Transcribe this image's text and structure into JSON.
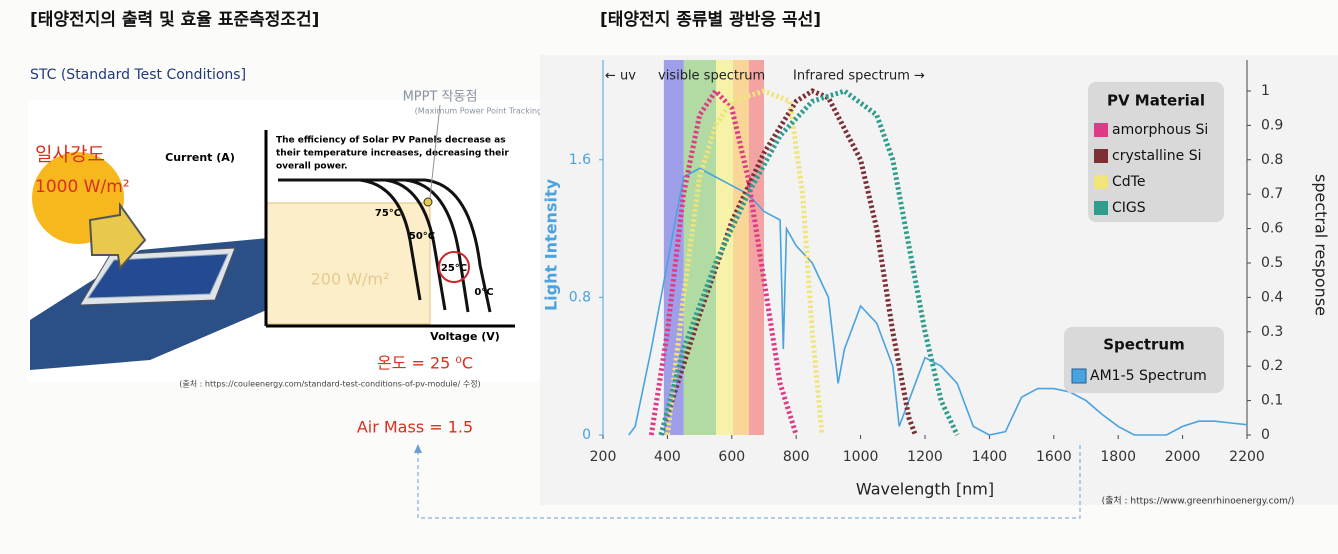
{
  "left": {
    "title": "[태양전지의 출력 및 효율 표준측정조건]",
    "subtitle": "STC (Standard Test Conditions]",
    "irradiance_label": "일사강도",
    "irradiance_value": "1000 W/m²",
    "mppt": "MPPT 작동점",
    "mppt_note": "(Maximum Power Point Tracking)",
    "efficiency_note": [
      "The efficiency of Solar PV Panels decrease as",
      "their temperature increases, decreasing their",
      "overall power."
    ],
    "y_axis": "Current (A)",
    "x_axis": "Voltage (V)",
    "curves": [
      "75°C",
      "50°C",
      "25°C",
      "0°C"
    ],
    "box_label": "200 W/m²",
    "temperature": "온도 = 25 ⁰C",
    "source": "(출처 : https://couleenergy.com/standard-test-conditions-of-pv-module/ 수정)",
    "air_mass": "Air Mass = 1.5"
  },
  "right": {
    "title": "[태양전지 종류별 광반응 곡선]",
    "source": "(출처 : https://www.greenrhinoenergy.com/)"
  },
  "chart_data": {
    "type": "line",
    "xlabel": "Wavelength [nm]",
    "ylabel": "Light Intensity",
    "y2label": "spectral response",
    "xlim": [
      200,
      2200
    ],
    "xticks": [
      200,
      400,
      600,
      800,
      1000,
      1200,
      1400,
      1600,
      1800,
      2000,
      2200
    ],
    "ylim": [
      0,
      2.18
    ],
    "yticks": [
      0,
      0.8,
      1.6
    ],
    "y2lim": [
      0,
      1.09
    ],
    "y2ticks": [
      0,
      0.1,
      0.2,
      0.3,
      0.4,
      0.5,
      0.6,
      0.7,
      0.8,
      0.9,
      1
    ],
    "annotations": [
      "← uv",
      "visible spectrum",
      "Infrared spectrum →"
    ],
    "bands": [
      {
        "start": 389,
        "end": 451,
        "color": "#8f8fe6"
      },
      {
        "start": 451,
        "end": 551,
        "color": "#a6d594"
      },
      {
        "start": 551,
        "end": 604,
        "color": "#f6f29a"
      },
      {
        "start": 604,
        "end": 653,
        "color": "#f9cf86"
      },
      {
        "start": 653,
        "end": 700,
        "color": "#f39494"
      }
    ],
    "legend_titles": [
      "PV Material",
      "Spectrum"
    ],
    "series": [
      {
        "name": "amorphous Si",
        "color": "#df3a86",
        "axis": "y2",
        "x": [
          350,
          400,
          450,
          500,
          550,
          600,
          650,
          700,
          750,
          800
        ],
        "values": [
          0,
          0.3,
          0.7,
          0.93,
          1.0,
          0.95,
          0.75,
          0.45,
          0.15,
          0
        ]
      },
      {
        "name": "crystalline Si",
        "color": "#7d2f36",
        "axis": "y2",
        "x": [
          380,
          500,
          600,
          700,
          800,
          850,
          900,
          1000,
          1050,
          1100,
          1150,
          1170
        ],
        "values": [
          0,
          0.35,
          0.62,
          0.82,
          0.97,
          1.0,
          0.98,
          0.8,
          0.6,
          0.3,
          0.05,
          0
        ]
      },
      {
        "name": "CdTe",
        "color": "#f0e47a",
        "axis": "y2",
        "x": [
          400,
          450,
          500,
          550,
          600,
          700,
          780,
          820,
          850,
          880
        ],
        "values": [
          0,
          0.4,
          0.75,
          0.9,
          0.97,
          1.0,
          0.97,
          0.7,
          0.3,
          0
        ]
      },
      {
        "name": "CIGS",
        "color": "#2e9d8e",
        "axis": "y2",
        "x": [
          380,
          450,
          550,
          650,
          750,
          850,
          950,
          1050,
          1100,
          1150,
          1200,
          1250,
          1300
        ],
        "values": [
          0,
          0.25,
          0.5,
          0.7,
          0.87,
          0.97,
          1.0,
          0.93,
          0.8,
          0.55,
          0.3,
          0.1,
          0
        ]
      },
      {
        "name": "AM1-5 Spectrum",
        "color": "#4aa3df",
        "x": [
          280,
          300,
          350,
          400,
          450,
          500,
          550,
          600,
          650,
          700,
          750,
          760,
          770,
          800,
          850,
          900,
          930,
          950,
          1000,
          1050,
          1100,
          1120,
          1150,
          1200,
          1250,
          1300,
          1350,
          1400,
          1450,
          1500,
          1550,
          1600,
          1650,
          1700,
          1750,
          1800,
          1850,
          1950,
          2000,
          2050,
          2100,
          2150,
          2200
        ],
        "values": [
          0,
          0.05,
          0.5,
          1.0,
          1.5,
          1.55,
          1.5,
          1.45,
          1.4,
          1.3,
          1.25,
          0.5,
          1.2,
          1.1,
          1.0,
          0.8,
          0.3,
          0.5,
          0.75,
          0.65,
          0.4,
          0.05,
          0.2,
          0.45,
          0.4,
          0.3,
          0.05,
          0,
          0.02,
          0.22,
          0.27,
          0.27,
          0.25,
          0.2,
          0.12,
          0.05,
          0,
          0,
          0.05,
          0.08,
          0.08,
          0.07,
          0.06
        ]
      }
    ]
  }
}
